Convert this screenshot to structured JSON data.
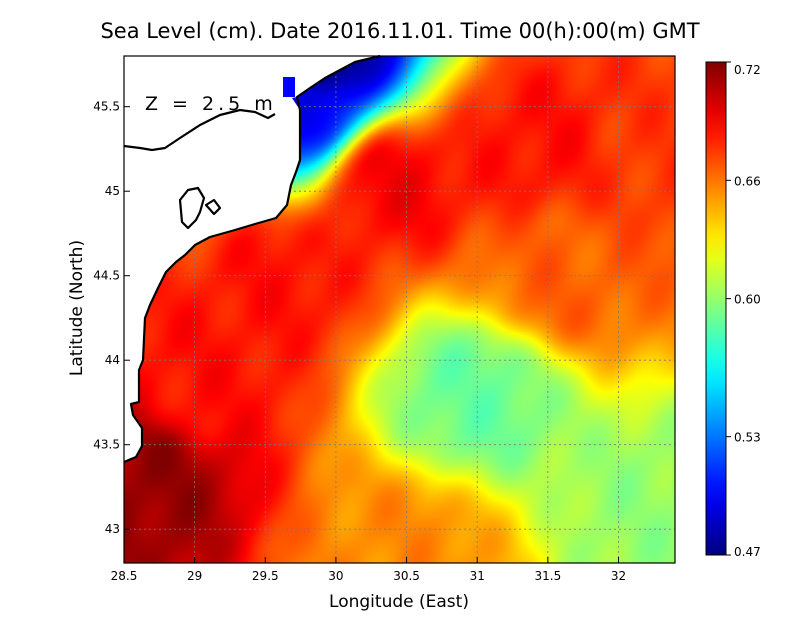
{
  "chart_data": {
    "type": "heatmap",
    "title": "Sea Level (cm). Date 2016.11.01. Time 00(h):00(m) GMT",
    "xlabel": "Longitude (East)",
    "ylabel": "Latitude (North)",
    "annotation": "Z = 2.5 m",
    "xlim": [
      28.5,
      32.4
    ],
    "ylim": [
      42.8,
      45.8
    ],
    "x_ticks": [
      "28.5",
      "29",
      "29.5",
      "30",
      "30.5",
      "31",
      "31.5",
      "32"
    ],
    "y_ticks": [
      "43",
      "43.5",
      "44",
      "44.5",
      "45",
      "45.5"
    ],
    "grid": true,
    "colorbar": {
      "min": 0.47,
      "max": 0.72,
      "tick_labels": [
        "0.72",
        "0.66",
        "0.60",
        "0.53",
        "0.47"
      ]
    },
    "colors": {
      "low": "#00008f",
      "mid": "#ffff00",
      "high": "#7f0000",
      "land": "#ffffff",
      "coastline": "#000000"
    },
    "field_features": [
      {
        "lon": 28.6,
        "lat": 43.3,
        "value": 0.715
      },
      {
        "lon": 29.0,
        "lat": 43.9,
        "value": 0.685
      },
      {
        "lon": 29.6,
        "lat": 44.5,
        "value": 0.685
      },
      {
        "lon": 30.4,
        "lat": 45.05,
        "value": 0.69
      },
      {
        "lon": 31.4,
        "lat": 45.3,
        "value": 0.685
      },
      {
        "lon": 32.3,
        "lat": 45.2,
        "value": 0.675
      },
      {
        "lon": 31.6,
        "lat": 44.5,
        "value": 0.665
      },
      {
        "lon": 31.0,
        "lat": 43.8,
        "value": 0.59
      },
      {
        "lon": 32.3,
        "lat": 43.1,
        "value": 0.6
      },
      {
        "lon": 29.85,
        "lat": 45.8,
        "value": 0.47
      },
      {
        "lon": 29.7,
        "lat": 45.5,
        "value": 0.5
      },
      {
        "lon": 30.5,
        "lat": 42.85,
        "value": 0.655
      }
    ]
  }
}
